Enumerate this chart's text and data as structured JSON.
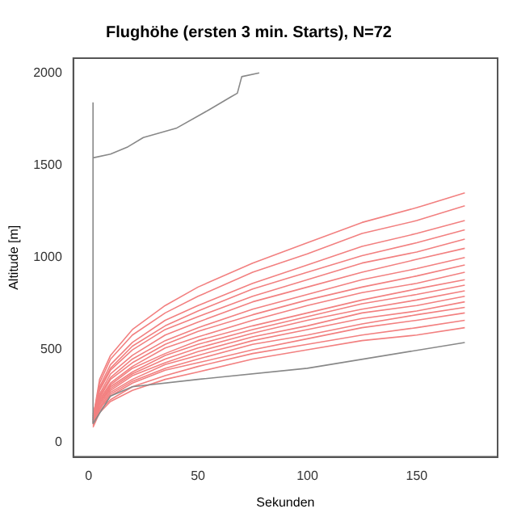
{
  "chart_data": {
    "type": "line",
    "title": "Flughöhe (ersten 3 min. Starts), N=72",
    "xlabel": "Sekunden",
    "ylabel": "Altitude [m]",
    "x": [
      2,
      5,
      10,
      20,
      35,
      50,
      75,
      100,
      125,
      150,
      172
    ],
    "xlim": [
      -7,
      187
    ],
    "xticks": [
      0,
      50,
      100,
      150
    ],
    "ylim": [
      -80,
      2080
    ],
    "yticks": [
      0,
      500,
      1000,
      1500,
      2000
    ],
    "grid": false,
    "legend": false,
    "marker": "none",
    "line_style": "solid",
    "series": [
      {
        "color": "#888888",
        "x": [
          2,
          2
        ],
        "values": [
          100,
          1840
        ]
      },
      {
        "color": "#888888",
        "x": [
          2,
          10,
          18,
          25,
          40,
          55,
          65,
          68,
          70,
          78
        ],
        "values": [
          1540,
          1560,
          1600,
          1650,
          1700,
          1800,
          1870,
          1890,
          1980,
          2000
        ]
      },
      {
        "color": "#888888",
        "x": [
          2,
          10,
          20,
          50,
          100,
          172
        ],
        "values": [
          100,
          250,
          300,
          340,
          400,
          540
        ]
      },
      {
        "color": "#f28080",
        "values": [
          130,
          340,
          470,
          610,
          740,
          840,
          970,
          1080,
          1190,
          1270,
          1350
        ]
      },
      {
        "color": "#f28080",
        "values": [
          120,
          320,
          450,
          580,
          700,
          790,
          920,
          1020,
          1130,
          1200,
          1280
        ]
      },
      {
        "color": "#f28080",
        "values": [
          140,
          300,
          420,
          540,
          660,
          740,
          860,
          960,
          1060,
          1130,
          1200
        ]
      },
      {
        "color": "#f28080",
        "values": [
          110,
          290,
          400,
          520,
          630,
          710,
          830,
          920,
          1010,
          1080,
          1150
        ]
      },
      {
        "color": "#f28080",
        "values": [
          150,
          280,
          390,
          500,
          610,
          680,
          790,
          880,
          970,
          1030,
          1100
        ]
      },
      {
        "color": "#f28080",
        "values": [
          120,
          260,
          370,
          470,
          580,
          650,
          760,
          840,
          920,
          990,
          1050
        ]
      },
      {
        "color": "#f28080",
        "values": [
          100,
          250,
          350,
          450,
          550,
          620,
          720,
          800,
          880,
          940,
          1000
        ]
      },
      {
        "color": "#f28080",
        "values": [
          130,
          240,
          340,
          430,
          530,
          600,
          690,
          770,
          840,
          900,
          960
        ]
      },
      {
        "color": "#f28080",
        "values": [
          110,
          230,
          320,
          410,
          510,
          570,
          660,
          740,
          810,
          860,
          920
        ]
      },
      {
        "color": "#f28080",
        "values": [
          140,
          220,
          310,
          400,
          480,
          550,
          630,
          700,
          770,
          830,
          880
        ]
      },
      {
        "color": "#f28080",
        "values": [
          120,
          210,
          300,
          380,
          470,
          530,
          610,
          680,
          750,
          800,
          850
        ]
      },
      {
        "color": "#f28080",
        "values": [
          100,
          210,
          290,
          370,
          450,
          510,
          590,
          660,
          720,
          770,
          820
        ]
      },
      {
        "color": "#f28080",
        "values": [
          130,
          200,
          280,
          360,
          430,
          490,
          570,
          630,
          700,
          740,
          790
        ]
      },
      {
        "color": "#f28080",
        "values": [
          110,
          190,
          270,
          340,
          420,
          470,
          550,
          610,
          670,
          710,
          760
        ]
      },
      {
        "color": "#f28080",
        "values": [
          90,
          180,
          260,
          330,
          400,
          450,
          530,
          580,
          640,
          690,
          730
        ]
      },
      {
        "color": "#f28080",
        "values": [
          120,
          180,
          250,
          320,
          390,
          430,
          500,
          560,
          620,
          660,
          700
        ]
      },
      {
        "color": "#f28080",
        "values": [
          100,
          170,
          230,
          300,
          360,
          410,
          480,
          530,
          580,
          620,
          660
        ]
      },
      {
        "color": "#f28080",
        "values": [
          80,
          160,
          220,
          280,
          340,
          380,
          450,
          500,
          550,
          580,
          620
        ]
      }
    ]
  }
}
